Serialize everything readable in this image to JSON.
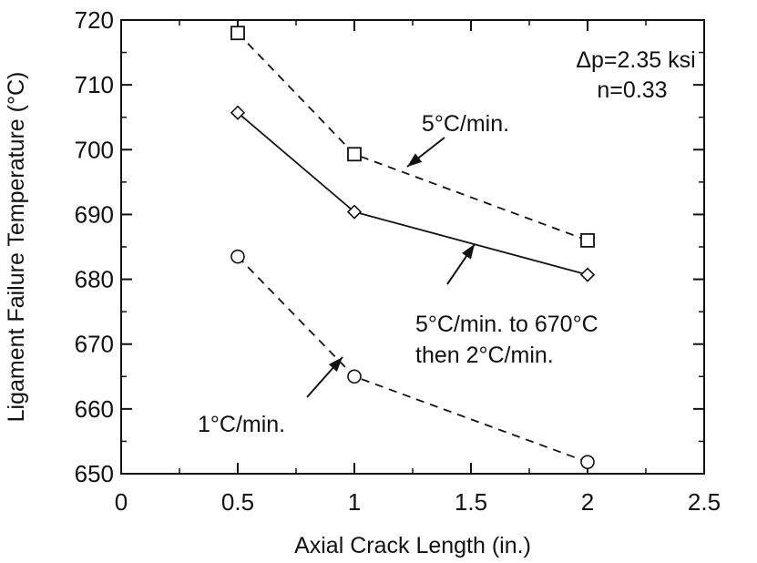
{
  "chart_data": {
    "type": "line",
    "title": "",
    "xlabel": "Axial Crack Length (in.)",
    "ylabel": "Ligament Failure Temperature (°C)",
    "xlim": [
      0,
      2.5
    ],
    "ylim": [
      650,
      720
    ],
    "x_ticks": [
      0,
      0.5,
      1,
      1.5,
      2,
      2.5
    ],
    "x_tick_labels": [
      "0",
      "0.5",
      "1",
      "1.5",
      "2",
      "2.5"
    ],
    "y_ticks": [
      650,
      660,
      670,
      680,
      690,
      700,
      710,
      720
    ],
    "y_tick_labels": [
      "650",
      "660",
      "670",
      "680",
      "690",
      "700",
      "710",
      "720"
    ],
    "grid": false,
    "series": [
      {
        "marker": "square",
        "line": "dashed",
        "x": [
          0.5,
          1,
          2
        ],
        "y": [
          718,
          699.3,
          686
        ]
      },
      {
        "marker": "diamond",
        "line": "solid",
        "x": [
          0.5,
          1,
          2
        ],
        "y": [
          705.7,
          690.4,
          680.7
        ]
      },
      {
        "marker": "circle",
        "line": "dashed",
        "x": [
          0.5,
          1,
          2
        ],
        "y": [
          683.5,
          665,
          651.8
        ]
      }
    ],
    "annotations": [
      {
        "lines": [
          "Δp=2.35 ksi"
        ]
      },
      {
        "lines": [
          "n=0.33"
        ]
      },
      {
        "lines": [
          "5°C/min."
        ]
      },
      {
        "lines": [
          "5°C/min. to 670°C",
          "then 2°C/min."
        ]
      },
      {
        "lines": [
          "1°C/min."
        ]
      }
    ]
  }
}
